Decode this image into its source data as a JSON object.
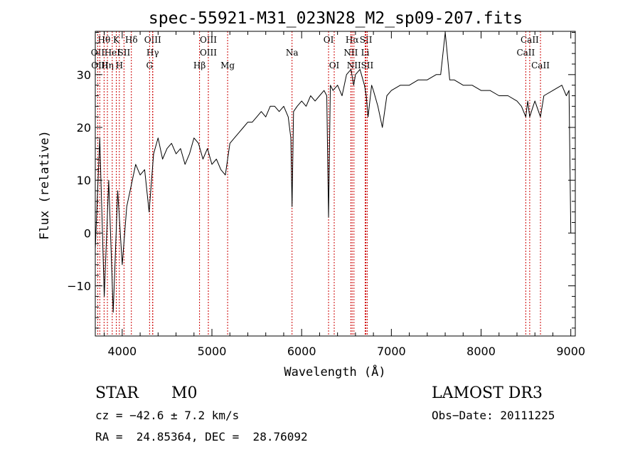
{
  "chart_data": {
    "type": "line",
    "title": "spec-55921-M31_023N28_M2_sp09-207.fits",
    "xlabel": "Wavelength (Å)",
    "ylabel": "Flux (relative)",
    "xlim": [
      3700,
      9050
    ],
    "ylim": [
      -19.5,
      38.2
    ],
    "xticks": [
      4000,
      5000,
      6000,
      7000,
      8000,
      9000
    ],
    "yticks": [
      -10,
      0,
      10,
      20,
      30
    ],
    "grid": false,
    "spectral_lines": [
      {
        "label": "Hθ",
        "wavelength": 3798,
        "row": 0
      },
      {
        "label": "OII",
        "wavelength": 3727,
        "row": 1
      },
      {
        "label": "OIII",
        "wavelength": 3750,
        "row": 2
      },
      {
        "label": "Hη",
        "wavelength": 3835,
        "row": 2
      },
      {
        "label": "HeI",
        "wavelength": 3889,
        "row": 1
      },
      {
        "label": "K",
        "wavelength": 3934,
        "row": 0
      },
      {
        "label": "H",
        "wavelength": 3968,
        "row": 2
      },
      {
        "label": "SII",
        "wavelength": 4020,
        "row": 1
      },
      {
        "label": "Hδ",
        "wavelength": 4102,
        "row": 0
      },
      {
        "label": "OIII",
        "wavelength": 4340,
        "row": 0
      },
      {
        "label": "Hγ",
        "wavelength": 4340,
        "row": 1
      },
      {
        "label": "G",
        "wavelength": 4305,
        "row": 2
      },
      {
        "label": "OIII",
        "wavelength": 4960,
        "row": 0
      },
      {
        "label": "OIII",
        "wavelength": 4960,
        "row": 1
      },
      {
        "label": "Hβ",
        "wavelength": 4862,
        "row": 2
      },
      {
        "label": "Mg",
        "wavelength": 5175,
        "row": 2
      },
      {
        "label": "Na",
        "wavelength": 5893,
        "row": 1
      },
      {
        "label": "OI",
        "wavelength": 6300,
        "row": 0
      },
      {
        "label": "OI",
        "wavelength": 6363,
        "row": 2
      },
      {
        "label": "Hα",
        "wavelength": 6563,
        "row": 0
      },
      {
        "label": "NII",
        "wavelength": 6548,
        "row": 1
      },
      {
        "label": "NII",
        "wavelength": 6583,
        "row": 2
      },
      {
        "label": "SII",
        "wavelength": 6717,
        "row": 0
      },
      {
        "label": "Li",
        "wavelength": 6708,
        "row": 1
      },
      {
        "label": "SII",
        "wavelength": 6731,
        "row": 2
      },
      {
        "label": "CaII",
        "wavelength": 8542,
        "row": 0
      },
      {
        "label": "CaII",
        "wavelength": 8498,
        "row": 1
      },
      {
        "label": "CaII",
        "wavelength": 8662,
        "row": 2
      }
    ],
    "line_color": "#cc0000",
    "series": [
      {
        "name": "flux",
        "x": [
          3700,
          3750,
          3800,
          3850,
          3900,
          3950,
          4000,
          4050,
          4100,
          4150,
          4200,
          4250,
          4300,
          4350,
          4400,
          4450,
          4500,
          4550,
          4600,
          4650,
          4700,
          4750,
          4800,
          4850,
          4900,
          4950,
          5000,
          5050,
          5100,
          5150,
          5200,
          5250,
          5300,
          5350,
          5400,
          5450,
          5500,
          5550,
          5600,
          5650,
          5700,
          5750,
          5800,
          5850,
          5880,
          5893,
          5910,
          5950,
          6000,
          6050,
          6100,
          6150,
          6200,
          6250,
          6280,
          6300,
          6320,
          6350,
          6400,
          6450,
          6500,
          6550,
          6580,
          6600,
          6650,
          6700,
          6720,
          6740,
          6780,
          6800,
          6850,
          6900,
          6950,
          7000,
          7100,
          7200,
          7300,
          7400,
          7500,
          7550,
          7600,
          7650,
          7700,
          7800,
          7900,
          8000,
          8100,
          8200,
          8300,
          8400,
          8450,
          8498,
          8520,
          8542,
          8580,
          8600,
          8662,
          8700,
          8800,
          8900,
          8950,
          8980,
          9000
        ],
        "y": [
          -3,
          18,
          -12,
          10,
          -15,
          8,
          -6,
          5,
          9,
          13,
          11,
          12,
          4,
          15,
          18,
          14,
          16,
          17,
          15,
          16,
          13,
          15,
          18,
          17,
          14,
          16,
          13,
          14,
          12,
          11,
          17,
          18,
          19,
          20,
          21,
          21,
          22,
          23,
          22,
          24,
          24,
          23,
          24,
          22,
          18,
          5,
          23,
          24,
          25,
          24,
          26,
          25,
          26,
          27,
          26,
          3,
          28,
          27,
          28,
          26,
          30,
          31,
          28,
          30,
          31,
          28,
          26,
          22,
          28,
          27,
          24,
          20,
          26,
          27,
          28,
          28,
          29,
          29,
          30,
          30,
          38,
          29,
          29,
          28,
          28,
          27,
          27,
          26,
          26,
          25,
          24,
          22,
          25,
          22,
          24,
          25,
          22,
          26,
          27,
          28,
          26,
          27,
          0
        ]
      }
    ]
  },
  "info": {
    "object_class": "STAR",
    "subclass": "M0",
    "survey": "LAMOST DR3",
    "redshift": "cz = −42.6 ± 7.2 km/s",
    "obs_date": "Obs−Date: 20111225",
    "coords": "RA =  24.85364, DEC =  28.76092"
  }
}
